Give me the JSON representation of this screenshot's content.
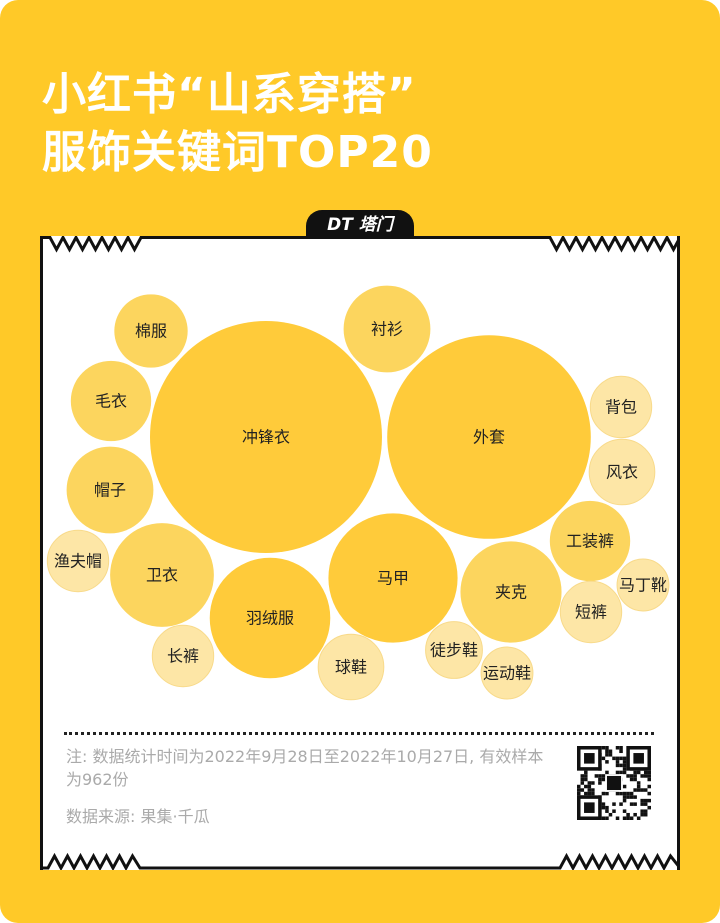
{
  "title": {
    "line1": "小红书“山系穿搭”",
    "line2": "服饰关键词TOP20"
  },
  "logo": {
    "text": "DT 塔门"
  },
  "colors": {
    "background": "#FFC928",
    "bubble_large": "#FFCB3A",
    "bubble_medium": "#FCD55E",
    "bubble_small": "#FDE6A6"
  },
  "chart_data": {
    "type": "bubble",
    "size_encoding": "area, relative to largest = 100",
    "categories": [
      "冲锋衣",
      "外套",
      "马甲",
      "羽绒服",
      "卫衣",
      "夹克",
      "衬衫",
      "帽子",
      "毛衣",
      "工装裤",
      "棉服",
      "球鞋",
      "风衣",
      "背包",
      "短裤",
      "长裤",
      "渔夫帽",
      "徒步鞋",
      "运动鞋",
      "马丁靴"
    ],
    "values": [
      100,
      77,
      31,
      27,
      20,
      19,
      14,
      14,
      12,
      12,
      10,
      8,
      8,
      7,
      7,
      7,
      7,
      6,
      5,
      5
    ]
  },
  "footer": {
    "note": "注: 数据统计时间为2022年9月28日至2022年10月27日, 有效样本为962份",
    "source": "数据来源: 果集·千瓜"
  }
}
